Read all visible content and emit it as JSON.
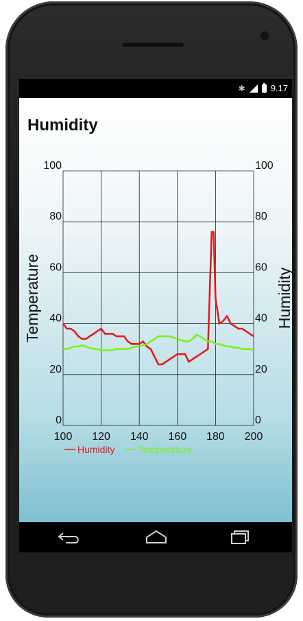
{
  "status_bar": {
    "time": "9.17",
    "icons": [
      "bluetooth-icon",
      "signal-icon",
      "battery-icon"
    ]
  },
  "app": {
    "title": "Humidity"
  },
  "nav_bar": {
    "icons": [
      "back-icon",
      "home-icon",
      "recents-icon"
    ]
  },
  "colors": {
    "humidity": "#e31a1c",
    "temperature": "#7cf01e",
    "grid": "#222222",
    "text": "#111111"
  },
  "chart_data": {
    "type": "line",
    "x": [
      100,
      102,
      104,
      106,
      108,
      110,
      112,
      114,
      116,
      118,
      120,
      122,
      124,
      126,
      128,
      130,
      132,
      134,
      136,
      138,
      140,
      142,
      144,
      146,
      148,
      150,
      152,
      154,
      156,
      158,
      160,
      162,
      164,
      166,
      168,
      170,
      172,
      174,
      176,
      178,
      179,
      180,
      182,
      184,
      186,
      188,
      190,
      192,
      194,
      196,
      198,
      200
    ],
    "xlim": [
      100,
      200
    ],
    "xticks": [
      "100",
      "120",
      "140",
      "160",
      "180",
      "200"
    ],
    "ylim_left": [
      0,
      100
    ],
    "ylim_right": [
      0,
      100
    ],
    "yticks_left": [
      "0",
      "20",
      "40",
      "60",
      "80",
      "100"
    ],
    "yticks_right": [
      "0",
      "20",
      "40",
      "60",
      "80",
      "100"
    ],
    "ylabel_left": "Temperature",
    "ylabel_right": "Humidity",
    "grid": true,
    "legend_position": "bottom-left",
    "series": [
      {
        "name": "Humidity",
        "color": "#e31a1c",
        "axis": "right",
        "values": [
          40,
          38,
          38,
          37,
          35,
          34,
          34,
          35,
          36,
          37,
          38,
          36,
          36,
          36,
          35,
          35,
          35,
          33,
          32,
          32,
          32,
          33,
          31,
          30,
          27,
          24,
          24,
          25,
          26,
          27,
          28,
          28,
          28,
          25,
          26,
          27,
          28,
          29,
          30,
          76,
          76,
          50,
          40,
          41,
          43,
          40,
          39,
          38,
          38,
          37,
          36,
          35
        ]
      },
      {
        "name": "Temperature",
        "color": "#7cf01e",
        "axis": "left",
        "values": [
          30,
          30,
          30.5,
          31,
          31,
          31.5,
          31,
          30.5,
          30,
          30,
          29.5,
          29.5,
          29.5,
          29.5,
          30,
          30,
          30,
          30,
          30.5,
          31,
          31,
          31.5,
          32,
          33,
          34,
          35,
          35,
          35,
          35,
          34.5,
          34,
          33.5,
          33,
          33,
          34,
          35.5,
          35,
          34,
          33,
          33,
          32.5,
          32,
          32,
          31.5,
          31,
          31,
          30.5,
          30.5,
          30,
          30,
          30,
          29.5
        ]
      }
    ]
  }
}
